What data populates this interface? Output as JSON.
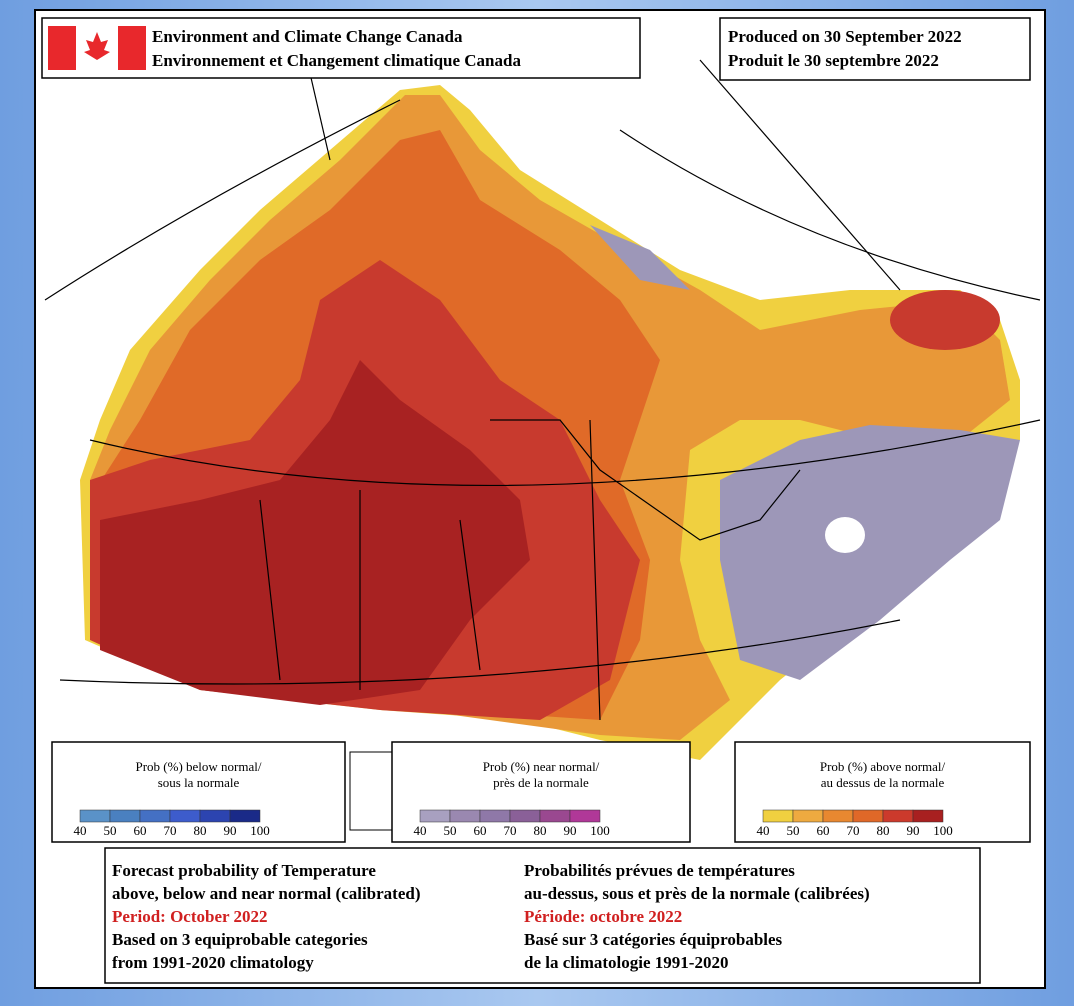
{
  "header": {
    "agency_en": "Environment and Climate Change Canada",
    "agency_fr": "Environnement et Changement climatique Canada",
    "produced_en": "Produced on 30 September 2022",
    "produced_fr": "Produit le 30 septembre 2022"
  },
  "legends": [
    {
      "title": [
        "Prob (%) below normal/",
        "sous la normale"
      ],
      "labels": [
        40,
        50,
        60,
        70,
        80,
        90,
        100
      ],
      "colors": [
        "#5a92c8",
        "#4a80c0",
        "#4470c4",
        "#3d5ccc",
        "#2c44b0",
        "#1a2a88"
      ]
    },
    {
      "title": [
        "Prob (%) near normal/",
        "près de la normale"
      ],
      "labels": [
        40,
        50,
        60,
        70,
        80,
        90,
        100
      ],
      "colors": [
        "#a8a0c0",
        "#9a88b0",
        "#8f78a8",
        "#8a6098",
        "#9a4890",
        "#b03898"
      ]
    },
    {
      "title": [
        "Prob (%) above normal/",
        "au dessus de la normale"
      ],
      "labels": [
        40,
        50,
        60,
        70,
        80,
        90,
        100
      ],
      "colors": [
        "#f0d040",
        "#eeaa40",
        "#e88830",
        "#e06828",
        "#cc3a2c",
        "#a82020"
      ]
    }
  ],
  "footer": {
    "en": [
      "Forecast probability of Temperature",
      "above, below and near normal (calibrated)",
      "Period: October 2022",
      "Based on 3 equiprobable categories",
      " from 1991-2020 climatology"
    ],
    "fr": [
      "Probabilités prévues de températures",
      "au-dessus, sous et près de la normale (calibrées)",
      "Période: octobre 2022",
      "Basé sur 3 catégories équiprobables",
      "de la climatologie 1991-2020"
    ]
  }
}
